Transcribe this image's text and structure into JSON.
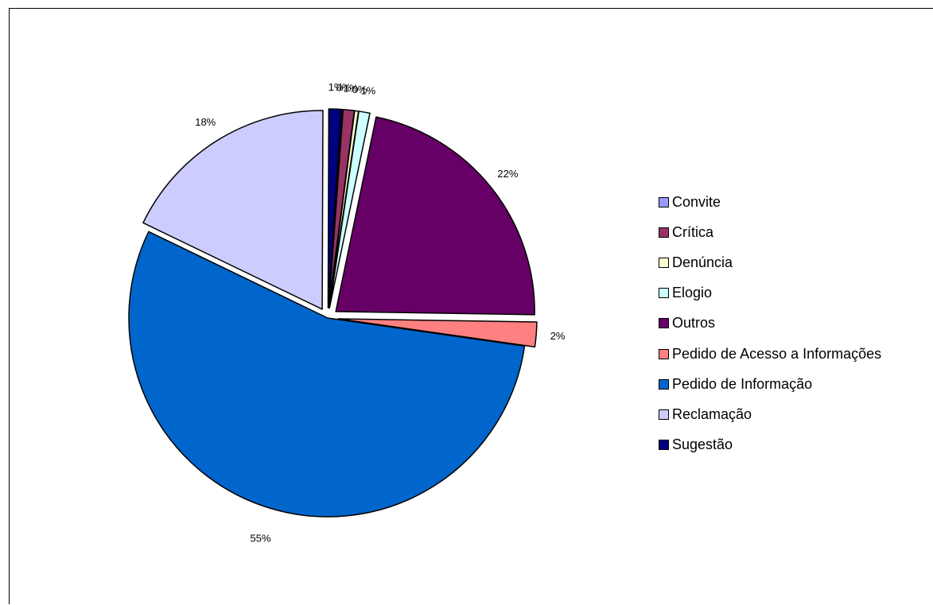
{
  "chart_data": {
    "type": "pie",
    "title": "",
    "slices": [
      {
        "name": "Convite",
        "value": 0.1,
        "label": "0%",
        "color": "#9999ff"
      },
      {
        "name": "Crítica",
        "value": 0.9,
        "label": "1%",
        "color": "#993366"
      },
      {
        "name": "Denúncia",
        "value": 0.3,
        "label": "0%",
        "color": "#ffffcc"
      },
      {
        "name": "Elogio",
        "value": 0.9,
        "label": "1%",
        "color": "#ccffff"
      },
      {
        "name": "Outros",
        "value": 22.0,
        "label": "22%",
        "color": "#660066"
      },
      {
        "name": "Pedido de Acesso a Informações",
        "value": 2.0,
        "label": "2%",
        "color": "#ff8080"
      },
      {
        "name": "Pedido de Informação",
        "value": 54.9,
        "label": "55%",
        "color": "#0066cc"
      },
      {
        "name": "Reclamação",
        "value": 17.9,
        "label": "18%",
        "color": "#ccccff"
      },
      {
        "name": "Sugestão",
        "value": 1.0,
        "label": "1%",
        "color": "#000080"
      }
    ],
    "exploded": [
      "Convite",
      "Crítica",
      "Denúncia",
      "Elogio",
      "Outros",
      "Pedido de Acesso a Informações",
      "Reclamação",
      "Sugestão"
    ],
    "legend_position": "right",
    "grid": false
  }
}
